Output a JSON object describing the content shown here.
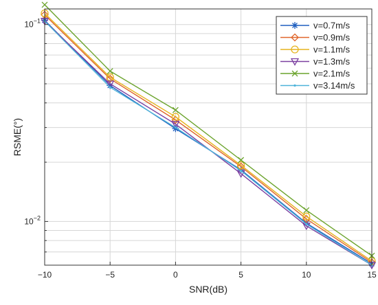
{
  "chart_data": {
    "type": "line",
    "title": "",
    "xlabel": "SNR(dB)",
    "ylabel": "RSME(°)",
    "xlim": [
      -10,
      15
    ],
    "ylim": [
      0.006,
      0.12
    ],
    "yscale": "log",
    "grid": true,
    "legend_position": "top-right",
    "x": [
      -10,
      -5,
      0,
      5,
      10,
      15
    ],
    "x_tick_labels": [
      "−10",
      "−5",
      "0",
      "5",
      "10",
      "15"
    ],
    "y_tick_labels": [
      {
        "value": 0.1,
        "base": "10",
        "exp": "−1"
      },
      {
        "value": 0.01,
        "base": "10",
        "exp": "−2"
      }
    ],
    "series": [
      {
        "name": "v=0.7m/s",
        "color": "#1f5fbf",
        "marker": "asterisk",
        "values": [
          0.105,
          0.049,
          0.0296,
          0.0183,
          0.0098,
          0.0061
        ]
      },
      {
        "name": "v=0.9m/s",
        "color": "#e0662a",
        "marker": "diamond",
        "values": [
          0.112,
          0.053,
          0.0328,
          0.019,
          0.0103,
          0.0062
        ]
      },
      {
        "name": "v=1.1m/s",
        "color": "#e6b41f",
        "marker": "circle",
        "values": [
          0.114,
          0.054,
          0.034,
          0.0193,
          0.0106,
          0.0063
        ]
      },
      {
        "name": "v=1.3m/s",
        "color": "#7b3fa0",
        "marker": "triangle-down",
        "values": [
          0.104,
          0.05,
          0.0312,
          0.0175,
          0.0095,
          0.006
        ]
      },
      {
        "name": "v=2.1m/s",
        "color": "#6aa32b",
        "marker": "x",
        "values": [
          0.126,
          0.058,
          0.0368,
          0.0205,
          0.0114,
          0.0067
        ]
      },
      {
        "name": "v=3.14m/s",
        "color": "#4db3d9",
        "marker": "dot",
        "values": [
          0.104,
          0.048,
          0.03,
          0.0181,
          0.0097,
          0.006
        ]
      }
    ]
  }
}
